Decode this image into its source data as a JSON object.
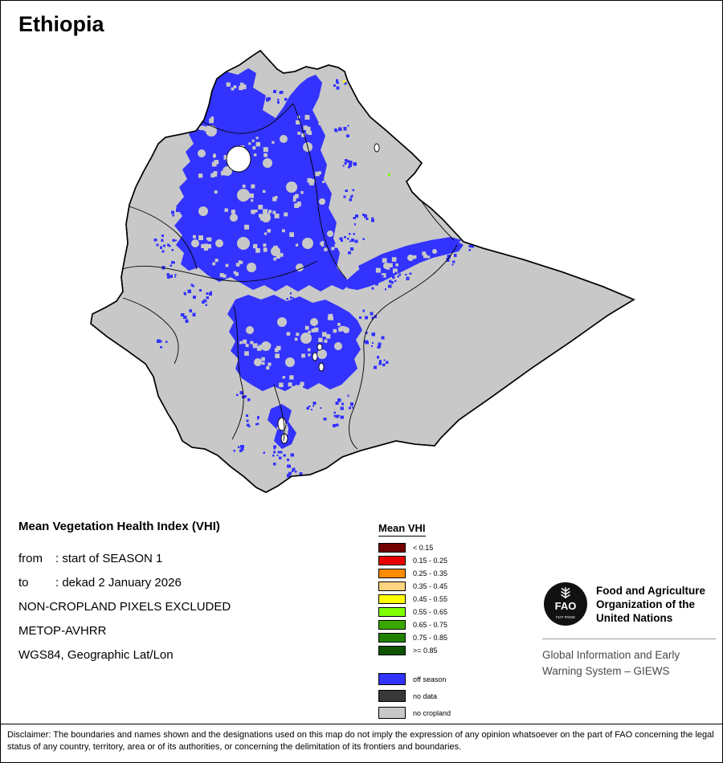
{
  "title": "Ethiopia",
  "map": {
    "colors": {
      "land": "#c8c8c8",
      "off_season": "#3333ff",
      "no_data": "#383838",
      "border": "#000000",
      "lake": "#ffffff"
    }
  },
  "info": {
    "heading": "Mean Vegetation Health Index (VHI)",
    "rows": [
      {
        "label": "from",
        "value": ": start of SEASON 1"
      },
      {
        "label": "to",
        "value": ": dekad 2 January 2026"
      },
      {
        "label": "",
        "value": "NON-CROPLAND PIXELS EXCLUDED"
      },
      {
        "label": "",
        "value": "METOP-AVHRR"
      },
      {
        "label": "",
        "value": "WGS84, Geographic Lat/Lon"
      }
    ]
  },
  "legend": {
    "title": "Mean VHI",
    "classes": [
      {
        "label": "< 0.15",
        "color": "#730000"
      },
      {
        "label": "0.15 - 0.25",
        "color": "#e60000"
      },
      {
        "label": "0.25 - 0.35",
        "color": "#ff8c00"
      },
      {
        "label": "0.35 - 0.45",
        "color": "#ffd37f"
      },
      {
        "label": "0.45 - 0.55",
        "color": "#ffff00"
      },
      {
        "label": "0.55 - 0.65",
        "color": "#80ff00"
      },
      {
        "label": "0.65 - 0.75",
        "color": "#38a800"
      },
      {
        "label": "0.75 - 0.85",
        "color": "#218000"
      },
      {
        "label": ">= 0.85",
        "color": "#0c5200"
      }
    ],
    "extra": [
      {
        "label": "off season",
        "color": "#3333ff"
      },
      {
        "label": "no data",
        "color": "#383838"
      },
      {
        "label": "no cropland",
        "color": "#c8c8c8"
      }
    ]
  },
  "footer_org": {
    "fao_acronym": "FAO",
    "fao_motto": "FIAT PANIS",
    "org_name_lines": [
      "Food and Agriculture",
      "Organization of the",
      "United Nations"
    ],
    "giews_lines": [
      "Global Information and Early",
      "Warning System – GIEWS"
    ]
  },
  "disclaimer": "Disclaimer: The boundaries and names shown and the designations used on this map do not imply the expression of any opinion whatsoever on the part of FAO concerning the legal status of any country, territory, area or of its authorities, or concerning the delimitation of its frontiers and boundaries."
}
